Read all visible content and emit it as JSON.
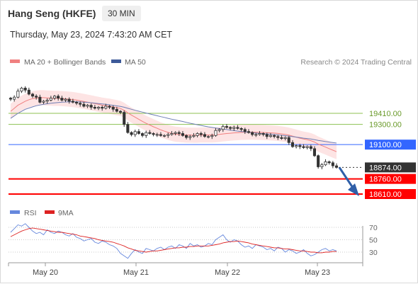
{
  "header": {
    "title": "Hang Seng (HKFE)",
    "timeframe": "30 MIN",
    "datetime": "Thursday, May 23, 2024 7:43:20 AM CET"
  },
  "legend": {
    "items": [
      {
        "label": "MA 20 + Bollinger Bands",
        "color": "#f08080"
      },
      {
        "label": "MA 50",
        "color": "#3d5a99"
      }
    ],
    "credit": "Research © 2024 Trading Central"
  },
  "colors": {
    "support": "#ff0000",
    "resistance": "#8cc152",
    "pivot": "#3366ff",
    "candle": "#333333",
    "bollinger_fill": "#fde4e4",
    "ma20": "#f08080",
    "ma50": "#6f7fb5",
    "rsi": "#6688dd",
    "rsi_ma": "#dd2222",
    "arrow": "#2f5fa8"
  },
  "chart_data": [
    {
      "type": "line",
      "title": "Hang Seng (HKFE)",
      "x_ticks": [
        "May 20",
        "May 21",
        "May 22",
        "May 23"
      ],
      "ylim": [
        18550,
        19700
      ],
      "last_price": 18874,
      "levels": [
        {
          "value": 19410,
          "label": "19410.00",
          "kind": "resistance"
        },
        {
          "value": 19300,
          "label": "19300.00",
          "kind": "resistance"
        },
        {
          "value": 19100,
          "label": "19100.00",
          "kind": "pivot"
        },
        {
          "value": 18874,
          "label": "18874.00",
          "kind": "last"
        },
        {
          "value": 18760,
          "label": "18760.00",
          "kind": "support"
        },
        {
          "value": 18610,
          "label": "18610.00",
          "kind": "support"
        }
      ],
      "closes": [
        19550,
        19570,
        19630,
        19660,
        19640,
        19600,
        19580,
        19570,
        19520,
        19530,
        19540,
        19560,
        19580,
        19560,
        19540,
        19550,
        19530,
        19520,
        19510,
        19500,
        19480,
        19490,
        19470,
        19460,
        19470,
        19460,
        19480,
        19470,
        19450,
        19430,
        19420,
        19300,
        19220,
        19200,
        19230,
        19210,
        19190,
        19220,
        19210,
        19200,
        19200,
        19190,
        19190,
        19200,
        19210,
        19220,
        19210,
        19190,
        19170,
        19180,
        19190,
        19210,
        19200,
        19180,
        19180,
        19190,
        19240,
        19250,
        19280,
        19270,
        19260,
        19270,
        19260,
        19250,
        19230,
        19220,
        19200,
        19200,
        19210,
        19200,
        19180,
        19190,
        19180,
        19170,
        19160,
        19170,
        19120,
        19080,
        19090,
        19080,
        19070,
        19080,
        19060,
        18990,
        18880,
        18900,
        18930,
        18920,
        18890,
        18874
      ],
      "series": [
        {
          "name": "MA 20 + Bollinger Bands",
          "values": [
            19430,
            19460,
            19490,
            19510,
            19530,
            19545,
            19555,
            19560,
            19565,
            19565,
            19562,
            19560,
            19558,
            19558,
            19556,
            19553,
            19550,
            19546,
            19541,
            19535,
            19528,
            19521,
            19514,
            19506,
            19499,
            19491,
            19486,
            19480,
            19473,
            19466,
            19458,
            19440,
            19415,
            19392,
            19372,
            19351,
            19330,
            19311,
            19294,
            19277,
            19262,
            19246,
            19233,
            19221,
            19211,
            19203,
            19200,
            19197,
            19194,
            19194,
            19193,
            19193,
            19195,
            19196,
            19195,
            19195,
            19197,
            19201,
            19206,
            19210,
            19213,
            19216,
            19218,
            19221,
            19222,
            19223,
            19223,
            19222,
            19221,
            19220,
            19218,
            19216,
            19214,
            19211,
            19206,
            19201,
            19194,
            19184,
            19174,
            19164,
            19155,
            19148,
            19139,
            19125,
            19105,
            19090,
            19075,
            19060,
            19045,
            19030
          ]
        },
        {
          "name": "MA 50",
          "values": [
            19360,
            19385,
            19410,
            19430,
            19450,
            19462,
            19474,
            19485,
            19493,
            19500,
            19505,
            19510,
            19514,
            19517,
            19520,
            19522,
            19524,
            19524,
            19524,
            19523,
            19520,
            19518,
            19515,
            19511,
            19507,
            19503,
            19499,
            19494,
            19489,
            19484,
            19478,
            19470,
            19460,
            19450,
            19440,
            19431,
            19422,
            19413,
            19404,
            19395,
            19386,
            19377,
            19369,
            19360,
            19352,
            19344,
            19336,
            19329,
            19320,
            19312,
            19305,
            19297,
            19290,
            19283,
            19276,
            19270,
            19264,
            19259,
            19254,
            19249,
            19244,
            19239,
            19234,
            19230,
            19226,
            19222,
            19218,
            19214,
            19211,
            19208,
            19205,
            19203,
            19200,
            19196,
            19192,
            19189,
            19184,
            19179,
            19174,
            19169,
            19164,
            19160,
            19155,
            19149,
            19142,
            19136,
            19130,
            19125,
            19120,
            19115
          ]
        }
      ]
    },
    {
      "type": "line",
      "ylim": [
        15,
        85
      ],
      "y_ticks": [
        "70",
        "50",
        "30"
      ],
      "legend": [
        "RSI",
        "9MA"
      ],
      "series": [
        {
          "name": "RSI",
          "values": [
            62,
            68,
            74,
            72,
            76,
            70,
            64,
            60,
            62,
            58,
            66,
            62,
            60,
            64,
            62,
            58,
            56,
            60,
            54,
            52,
            48,
            50,
            52,
            46,
            44,
            48,
            46,
            42,
            40,
            36,
            28,
            24,
            20,
            28,
            34,
            30,
            28,
            36,
            34,
            32,
            36,
            38,
            34,
            38,
            40,
            36,
            42,
            40,
            36,
            44,
            40,
            42,
            38,
            40,
            44,
            42,
            50,
            54,
            58,
            50,
            46,
            50,
            48,
            42,
            38,
            40,
            36,
            42,
            40,
            38,
            34,
            36,
            32,
            38,
            36,
            30,
            34,
            32,
            28,
            30,
            34,
            28,
            24,
            26,
            30,
            34,
            36,
            32,
            34,
            32
          ]
        },
        {
          "name": "9MA",
          "values": [
            55,
            58,
            61,
            64,
            66,
            68,
            69,
            68,
            67,
            66,
            65,
            64,
            63,
            62,
            62,
            61,
            60,
            59,
            58,
            56,
            55,
            54,
            53,
            52,
            50,
            49,
            48,
            47,
            46,
            44,
            42,
            40,
            37,
            35,
            33,
            32,
            31,
            30,
            31,
            32,
            32,
            33,
            34,
            35,
            36,
            37,
            37,
            38,
            38,
            39,
            39,
            40,
            40,
            40,
            40,
            41,
            42,
            43,
            45,
            46,
            47,
            47,
            48,
            47,
            46,
            45,
            43,
            42,
            41,
            40,
            39,
            38,
            37,
            37,
            36,
            35,
            35,
            34,
            33,
            32,
            32,
            31,
            30,
            30,
            29,
            29,
            30,
            30,
            31,
            31
          ]
        }
      ]
    }
  ]
}
